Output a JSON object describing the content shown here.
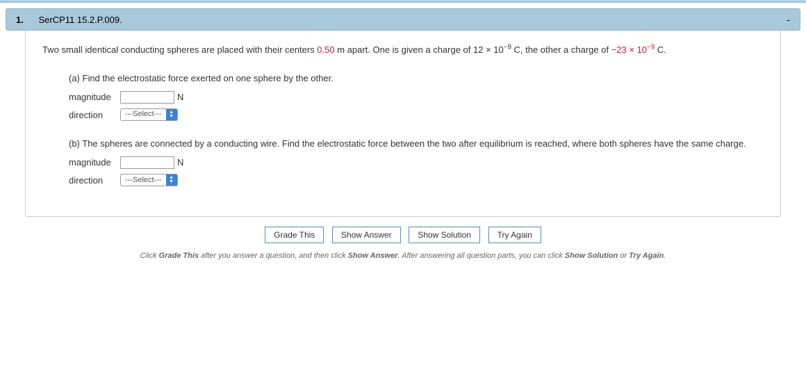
{
  "header": {
    "number": "1.",
    "id": "SerCP11 15.2.P.009.",
    "minus": "-"
  },
  "problem": {
    "t1": "Two small identical conducting spheres are placed with their centers ",
    "d1": "0.50",
    "t2": " m apart. One is given a charge of 12 × 10",
    "e1": "−9",
    "t3": " C, the other a charge of ",
    "d2": "−23 × 10",
    "e2": "−9",
    "t4": " C."
  },
  "partA": {
    "prompt": "(a) Find the electrostatic force exerted on one sphere by the other.",
    "magLabel": "magnitude",
    "magUnit": "N",
    "dirLabel": "direction",
    "selectPlaceholder": "---Select---"
  },
  "partB": {
    "prompt": "(b) The spheres are connected by a conducting wire. Find the electrostatic force between the two after equilibrium is reached, where both spheres have the same charge.",
    "magLabel": "magnitude",
    "magUnit": "N",
    "dirLabel": "direction",
    "selectPlaceholder": "---Select---"
  },
  "buttons": {
    "grade": "Grade This",
    "showAnswer": "Show Answer",
    "showSolution": "Show Solution",
    "tryAgain": "Try Again"
  },
  "hint": {
    "p1": "Click ",
    "b1": "Grade This",
    "p2": " after you answer a question, and then click ",
    "b2": "Show Answer",
    "p3": ". After answering all question parts, you can click ",
    "b3": "Show Solution",
    "p4": " or ",
    "b4": "Try Again",
    "p5": "."
  },
  "colors": {
    "headerBg": "#a8c8dc",
    "red": "#c41e3a",
    "buttonBorder": "#5a8ab8",
    "selectArrowBg": "#3b82d6"
  }
}
